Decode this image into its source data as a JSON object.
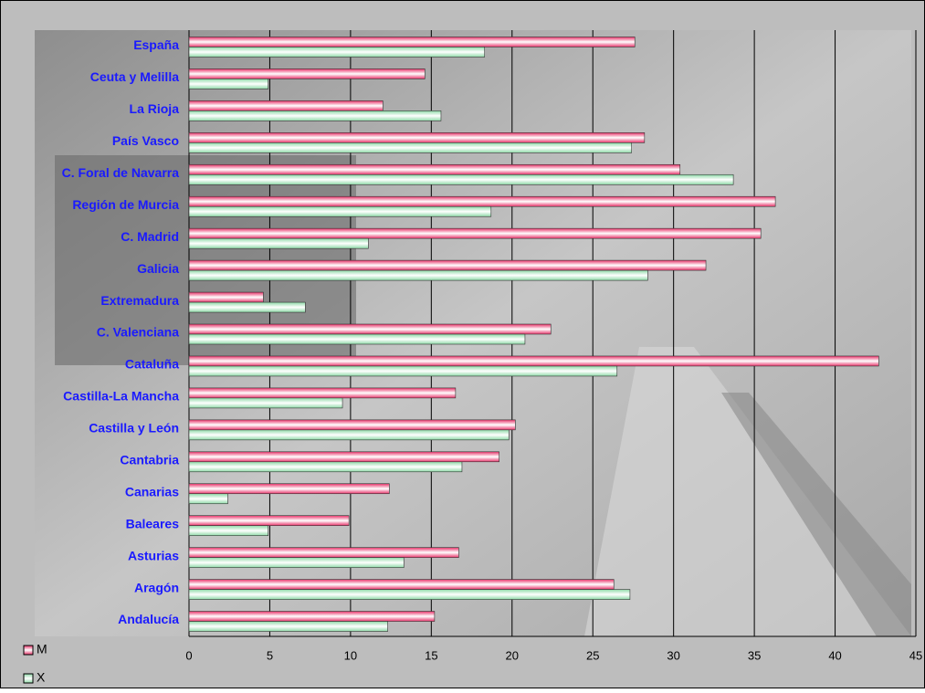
{
  "chart_data": {
    "type": "bar",
    "orientation": "horizontal",
    "categories": [
      "España",
      "Ceuta y Melilla",
      "La Rioja",
      "País Vasco",
      "C. Foral de Navarra",
      "Región de Murcia",
      "C. Madrid",
      "Galicia",
      "Extremadura",
      "C. Valenciana",
      "Cataluña",
      "Castilla-La Mancha",
      "Castilla y León",
      "Cantabria",
      "Canarias",
      "Baleares",
      "Asturias",
      "Aragón",
      "Andalucía"
    ],
    "series": [
      {
        "name": "M",
        "color": "#e8336a",
        "values": [
          27.6,
          14.6,
          12.0,
          28.2,
          30.4,
          36.3,
          35.4,
          32.0,
          4.6,
          22.4,
          42.7,
          16.5,
          20.2,
          19.2,
          12.4,
          9.9,
          16.7,
          26.3,
          15.2
        ]
      },
      {
        "name": "X",
        "color": "#8fdaa8",
        "values": [
          18.3,
          4.9,
          15.6,
          27.4,
          33.7,
          18.7,
          11.1,
          28.4,
          7.2,
          20.8,
          26.5,
          9.5,
          19.8,
          16.9,
          2.4,
          4.9,
          13.3,
          27.3,
          12.3
        ]
      }
    ],
    "xlim": [
      0,
      45
    ],
    "xticks": [
      0,
      5,
      10,
      15,
      20,
      25,
      30,
      35,
      40,
      45
    ],
    "grid": true,
    "legend": "bottom-left"
  }
}
